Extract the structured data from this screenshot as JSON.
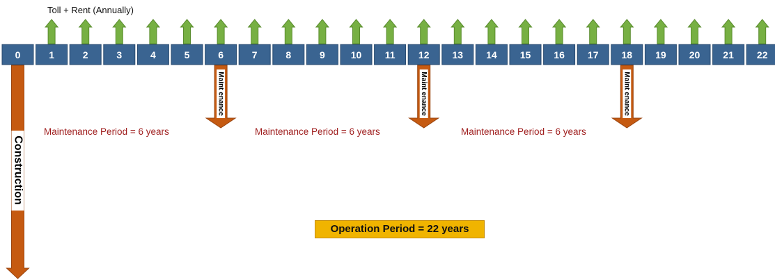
{
  "income_label": "Toll + Rent (Annually)",
  "years": [
    "0",
    "1",
    "2",
    "3",
    "4",
    "5",
    "6",
    "7",
    "8",
    "9",
    "10",
    "11",
    "12",
    "13",
    "14",
    "15",
    "16",
    "17",
    "18",
    "19",
    "20",
    "21",
    "22"
  ],
  "construction_label": "Construction",
  "maintenance_label": "Maint enance",
  "maintenance_years": [
    6,
    12,
    18
  ],
  "maintenance_periods": [
    "Maintenance Period = 6 years",
    "Maintenance Period = 6 years",
    "Maintenance Period = 6 years"
  ],
  "operation_period": "Operation Period = 22 years",
  "colors": {
    "year_box": "#3a6491",
    "year_box_border": "#294a6e",
    "income_arrow": "#77b043",
    "income_arrow_border": "#5a8c2e",
    "maintenance_arrow": "#c55a11",
    "maintenance_text": "#9e1b1b",
    "operation_box": "#f0b400"
  }
}
